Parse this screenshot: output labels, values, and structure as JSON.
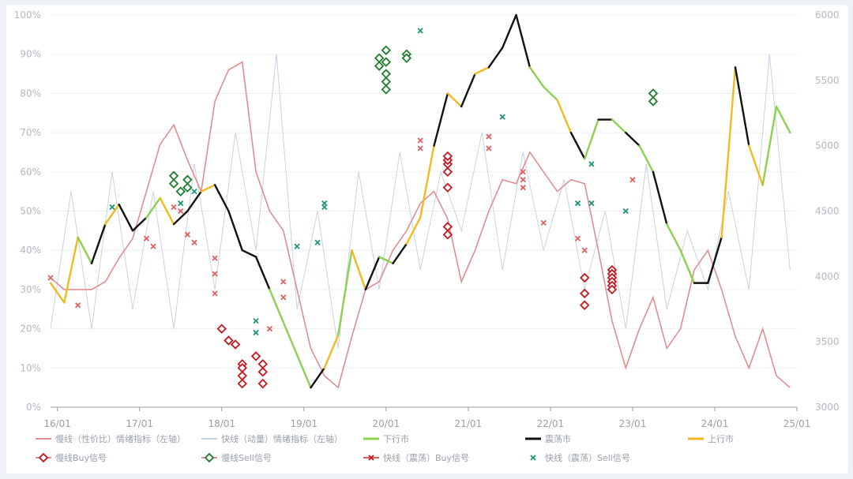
{
  "chart_data": {
    "type": "line",
    "y_left": {
      "ticks": [
        "0%",
        "10%",
        "20%",
        "30%",
        "40%",
        "50%",
        "60%",
        "70%",
        "80%",
        "90%",
        "100%"
      ],
      "min": 0,
      "max": 100
    },
    "y_right": {
      "ticks": [
        "3000",
        "3500",
        "4000",
        "4500",
        "5000",
        "5500",
        "6000"
      ],
      "min": 3000,
      "max": 6000
    },
    "x_ticks": [
      "16/01",
      "17/01",
      "18/01",
      "19/01",
      "20/01",
      "21/01",
      "22/01",
      "23/01",
      "24/01",
      "25/01"
    ],
    "x_range": [
      0,
      109
    ],
    "legend": {
      "slow": "慢线（性价比）情绪指标（左轴）",
      "fast": "快线（动量）情绪指标（左轴）",
      "down": "下行市",
      "range": "震荡市",
      "up": "上行市",
      "slow_buy": "慢线Buy信号",
      "slow_sell": "慢线Sell信号",
      "fast_buy": "快线（震荡）Buy信号",
      "fast_sell": "快线（震荡）Sell信号"
    },
    "colors": {
      "slow": "#e08e92",
      "fast": "#c9d2e0",
      "down": "#8cd250",
      "range": "#111111",
      "up": "#f5b920",
      "buy": "#c8161e",
      "sell": "#1e7d2e",
      "fastsell": "#1e9678",
      "fastbuy": "#e06060"
    },
    "slow_series": {
      "x": [
        0,
        2,
        4,
        6,
        8,
        10,
        12,
        14,
        16,
        18,
        20,
        22,
        24,
        26,
        28,
        30,
        32,
        34,
        36,
        38,
        40,
        42,
        44,
        46,
        48,
        50,
        52,
        54,
        56,
        58,
        60,
        62,
        64,
        66,
        68,
        70,
        72,
        74,
        76,
        78,
        80,
        82,
        84,
        86,
        88,
        90,
        92,
        94,
        96,
        98,
        100,
        102,
        104,
        106,
        108
      ],
      "values": [
        33,
        30,
        30,
        30,
        32,
        38,
        43,
        55,
        67,
        72,
        63,
        55,
        78,
        86,
        88,
        60,
        50,
        45,
        30,
        15,
        8,
        5,
        18,
        30,
        32,
        40,
        45,
        52,
        55,
        48,
        32,
        40,
        50,
        58,
        57,
        65,
        60,
        55,
        58,
        57,
        40,
        22,
        10,
        20,
        28,
        15,
        20,
        35,
        40,
        30,
        18,
        10,
        20,
        8,
        5
      ]
    },
    "fast_series": {
      "x": [
        0,
        3,
        6,
        9,
        12,
        15,
        18,
        21,
        24,
        27,
        30,
        33,
        36,
        39,
        42,
        45,
        48,
        51,
        54,
        57,
        60,
        63,
        66,
        69,
        72,
        75,
        78,
        81,
        84,
        87,
        90,
        93,
        96,
        99,
        102,
        105,
        108
      ],
      "values": [
        20,
        55,
        20,
        60,
        25,
        55,
        20,
        62,
        30,
        70,
        40,
        90,
        25,
        50,
        15,
        60,
        30,
        65,
        35,
        60,
        45,
        70,
        35,
        65,
        40,
        58,
        30,
        50,
        20,
        62,
        25,
        45,
        30,
        55,
        30,
        90,
        35
      ]
    },
    "market_series": {
      "x": [
        0,
        2,
        4,
        6,
        8,
        10,
        12,
        14,
        16,
        18,
        20,
        22,
        24,
        26,
        28,
        30,
        32,
        34,
        36,
        38,
        40,
        42,
        44,
        46,
        48,
        50,
        52,
        54,
        56,
        58,
        60,
        62,
        64,
        66,
        68,
        70,
        72,
        74,
        76,
        78,
        80,
        82,
        84,
        86,
        88,
        90,
        92,
        94,
        96,
        98,
        100,
        102,
        104,
        106,
        108
      ],
      "values": [
        3950,
        3800,
        4300,
        4100,
        4400,
        4550,
        4350,
        4450,
        4600,
        4400,
        4500,
        4650,
        4700,
        4500,
        4200,
        4150,
        3900,
        3650,
        3400,
        3150,
        3300,
        3550,
        4200,
        3900,
        4150,
        4100,
        4250,
        4450,
        5000,
        5400,
        5300,
        5550,
        5600,
        5750,
        6000,
        5600,
        5450,
        5350,
        5100,
        4900,
        5200,
        5200,
        5100,
        5000,
        4800,
        4400,
        4200,
        3950,
        3950,
        4300,
        5600,
        5000,
        4700,
        5300,
        5100
      ],
      "regimes": [
        "up",
        "up",
        "down",
        "range",
        "up",
        "range",
        "range",
        "down",
        "up",
        "range",
        "range",
        "up",
        "range",
        "range",
        "range",
        "range",
        "down",
        "down",
        "down",
        "range",
        "up",
        "down",
        "up",
        "range",
        "down",
        "range",
        "up",
        "up",
        "range",
        "up",
        "range",
        "up",
        "range",
        "range",
        "range",
        "down",
        "down",
        "up",
        "range",
        "down",
        "range",
        "down",
        "range",
        "down",
        "range",
        "down",
        "down",
        "range",
        "range",
        "up",
        "range",
        "up",
        "down",
        "down",
        "down"
      ]
    },
    "slow_buy_signals": [
      [
        25,
        20
      ],
      [
        26,
        17
      ],
      [
        27,
        16
      ],
      [
        28,
        11
      ],
      [
        28,
        10
      ],
      [
        28,
        8
      ],
      [
        28,
        6
      ],
      [
        30,
        13
      ],
      [
        31,
        11
      ],
      [
        31,
        9
      ],
      [
        31,
        6
      ],
      [
        58,
        60
      ],
      [
        58,
        62
      ],
      [
        58,
        63
      ],
      [
        58,
        64
      ],
      [
        58,
        56
      ],
      [
        58,
        46
      ],
      [
        58,
        44
      ],
      [
        78,
        33
      ],
      [
        78,
        29
      ],
      [
        78,
        26
      ],
      [
        82,
        35
      ],
      [
        82,
        34
      ],
      [
        82,
        33
      ],
      [
        82,
        32
      ],
      [
        82,
        31
      ],
      [
        82,
        30
      ]
    ],
    "slow_sell_signals": [
      [
        18,
        59
      ],
      [
        18,
        57
      ],
      [
        19,
        55
      ],
      [
        20,
        58
      ],
      [
        20,
        56
      ],
      [
        48,
        87
      ],
      [
        48,
        89
      ],
      [
        49,
        91
      ],
      [
        49,
        88
      ],
      [
        49,
        85
      ],
      [
        49,
        83
      ],
      [
        49,
        81
      ],
      [
        52,
        90
      ],
      [
        52,
        89
      ],
      [
        88,
        80
      ],
      [
        88,
        78
      ]
    ],
    "fast_buy_signals": [
      [
        0,
        33
      ],
      [
        4,
        26
      ],
      [
        14,
        43
      ],
      [
        15,
        41
      ],
      [
        18,
        51
      ],
      [
        19,
        50
      ],
      [
        20,
        44
      ],
      [
        21,
        42
      ],
      [
        24,
        38
      ],
      [
        24,
        34
      ],
      [
        24,
        29
      ],
      [
        32,
        20
      ],
      [
        34,
        32
      ],
      [
        34,
        28
      ],
      [
        54,
        68
      ],
      [
        54,
        66
      ],
      [
        64,
        69
      ],
      [
        64,
        66
      ],
      [
        69,
        60
      ],
      [
        69,
        58
      ],
      [
        69,
        56
      ],
      [
        72,
        47
      ],
      [
        77,
        43
      ],
      [
        78,
        40
      ],
      [
        85,
        58
      ]
    ],
    "fast_sell_signals": [
      [
        9,
        51
      ],
      [
        19,
        52
      ],
      [
        21,
        55
      ],
      [
        30,
        22
      ],
      [
        30,
        19
      ],
      [
        36,
        41
      ],
      [
        39,
        42
      ],
      [
        40,
        52
      ],
      [
        40,
        51
      ],
      [
        54,
        96
      ],
      [
        66,
        74
      ],
      [
        77,
        52
      ],
      [
        79,
        52
      ],
      [
        79,
        62
      ],
      [
        84,
        50
      ]
    ]
  }
}
